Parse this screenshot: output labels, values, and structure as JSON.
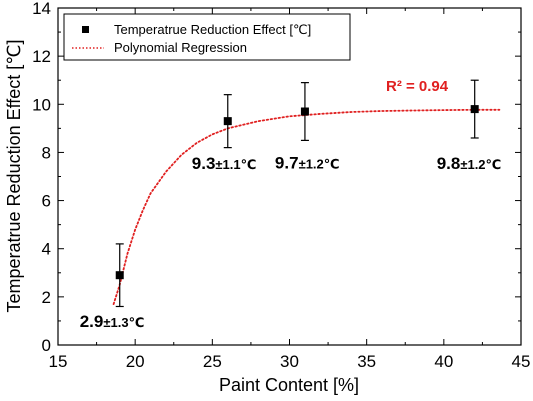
{
  "chart_data": {
    "type": "scatter",
    "xlabel": "Paint Content [%]",
    "ylabel": "Temperatrue Reduction Effect [℃]",
    "xlim": [
      15,
      45
    ],
    "ylim": [
      0,
      14
    ],
    "xticks": [
      15,
      20,
      25,
      30,
      35,
      40,
      45
    ],
    "yticks": [
      0,
      2,
      4,
      6,
      8,
      10,
      12,
      14
    ],
    "grid": false,
    "legend_position": "top-left",
    "series": [
      {
        "name": "Temperatrue Reduction Effect [℃]",
        "marker": "square",
        "color": "#000000",
        "x": [
          19,
          26,
          31,
          42
        ],
        "y": [
          2.9,
          9.3,
          9.7,
          9.8
        ],
        "error": [
          1.3,
          1.1,
          1.2,
          1.2
        ]
      },
      {
        "name": "Polynomial Regression",
        "line_style": "dotted",
        "color": "#e02020",
        "x": [
          18.6,
          19,
          19.5,
          20,
          20.5,
          21,
          22,
          23,
          24,
          25,
          26,
          28,
          30,
          32,
          34,
          36,
          38,
          40,
          42,
          43.6
        ],
        "y": [
          1.7,
          2.5,
          3.8,
          4.8,
          5.6,
          6.3,
          7.2,
          7.9,
          8.4,
          8.75,
          9.0,
          9.3,
          9.5,
          9.6,
          9.68,
          9.72,
          9.74,
          9.76,
          9.77,
          9.77
        ]
      }
    ],
    "annotations": [
      {
        "main": "2.9",
        "small": "±1.3℃",
        "x": 19,
        "y": 2.9
      },
      {
        "main": "9.3",
        "small": "±1.1℃",
        "x": 26,
        "y": 9.3
      },
      {
        "main": "9.7",
        "small": "±1.2℃",
        "x": 31,
        "y": 9.7
      },
      {
        "main": "9.8",
        "small": "±1.2℃",
        "x": 42,
        "y": 9.8
      }
    ],
    "r_squared_label": "R² = 0.94"
  }
}
